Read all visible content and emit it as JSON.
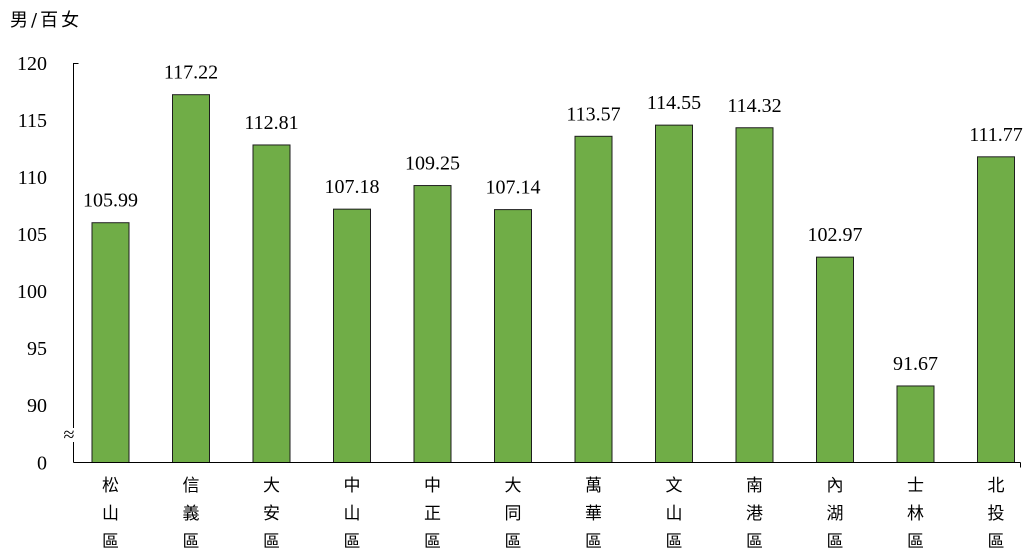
{
  "chart_data": {
    "type": "bar",
    "ylabel": "男/百女",
    "categories": [
      "松山區",
      "信義區",
      "大安區",
      "中山區",
      "中正區",
      "大同區",
      "萬華區",
      "文山區",
      "南港區",
      "內湖區",
      "士林區",
      "北投區"
    ],
    "values": [
      105.99,
      117.22,
      112.81,
      107.18,
      109.25,
      107.14,
      113.57,
      114.55,
      114.32,
      102.97,
      91.67,
      111.77
    ],
    "value_labels": [
      "105.99",
      "117.22",
      "112.81",
      "107.18",
      "109.25",
      "107.14",
      "113.57",
      "114.55",
      "114.32",
      "102.97",
      "91.67",
      "111.77"
    ],
    "yticks": [
      {
        "value": 120,
        "label": "120"
      },
      {
        "value": 115,
        "label": "115"
      },
      {
        "value": 110,
        "label": "110"
      },
      {
        "value": 105,
        "label": "105"
      },
      {
        "value": 100,
        "label": "100"
      },
      {
        "value": 95,
        "label": "95"
      },
      {
        "value": 90,
        "label": "90"
      },
      {
        "value": 0,
        "label": "0"
      }
    ],
    "ylim": [
      90,
      120
    ],
    "axis_break": {
      "from": 0,
      "to": 90,
      "symbol": "≈"
    },
    "grid": false,
    "colors": {
      "bar": "#70AD47",
      "bar_border": "#1E1E1E",
      "axis": "#000000",
      "text": "#000000"
    }
  }
}
